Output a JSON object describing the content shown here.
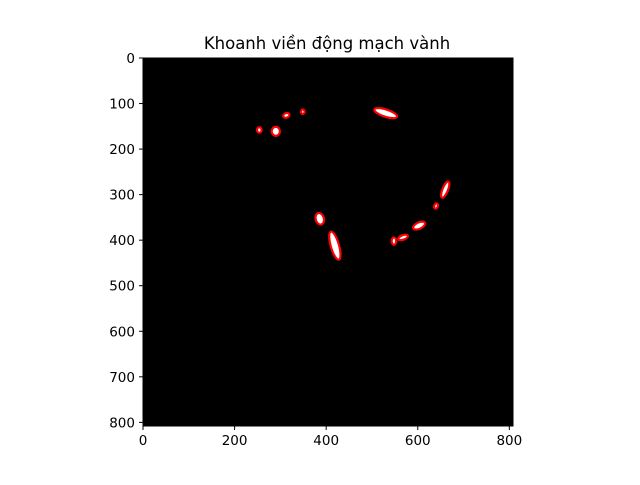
{
  "chart_data": {
    "type": "image",
    "title": "Khoanh viền động mạch vành",
    "xlabel": "",
    "ylabel": "",
    "xlim": [
      0,
      808
    ],
    "ylim": [
      808,
      0
    ],
    "y_inverted": true,
    "grid": false,
    "x_ticks": [
      0,
      200,
      400,
      600,
      800
    ],
    "y_ticks": [
      0,
      100,
      200,
      300,
      400,
      500,
      600,
      700,
      800
    ],
    "background_color": "#000000",
    "region_fill_color": "#ffffff",
    "contour_color": "#ff0000",
    "regions": [
      {
        "cx": 254,
        "cy": 158,
        "rx": 5,
        "ry": 6,
        "angle": 0
      },
      {
        "cx": 290,
        "cy": 161,
        "rx": 9,
        "ry": 10,
        "angle": 0
      },
      {
        "cx": 313,
        "cy": 126,
        "rx": 7,
        "ry": 5,
        "angle": -20
      },
      {
        "cx": 349,
        "cy": 118,
        "rx": 4,
        "ry": 5,
        "angle": 0
      },
      {
        "cx": 530,
        "cy": 121,
        "rx": 26,
        "ry": 8,
        "angle": 18
      },
      {
        "cx": 386,
        "cy": 353,
        "rx": 9,
        "ry": 13,
        "angle": -15
      },
      {
        "cx": 419,
        "cy": 412,
        "rx": 9,
        "ry": 32,
        "angle": -16
      },
      {
        "cx": 548,
        "cy": 402,
        "rx": 5,
        "ry": 8,
        "angle": 0
      },
      {
        "cx": 568,
        "cy": 394,
        "rx": 11,
        "ry": 5,
        "angle": -20
      },
      {
        "cx": 603,
        "cy": 368,
        "rx": 14,
        "ry": 7,
        "angle": -25
      },
      {
        "cx": 640,
        "cy": 325,
        "rx": 4,
        "ry": 6,
        "angle": 20
      },
      {
        "cx": 660,
        "cy": 289,
        "rx": 6,
        "ry": 19,
        "angle": 22
      }
    ]
  }
}
